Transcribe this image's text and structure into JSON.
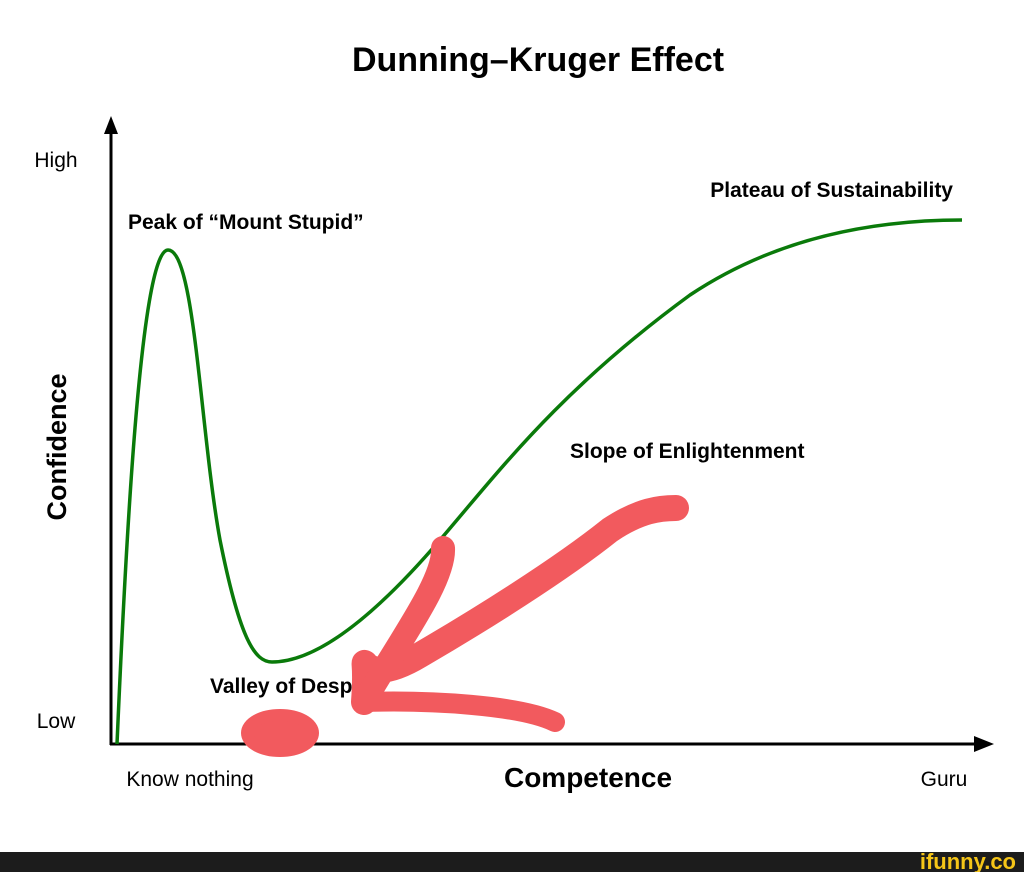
{
  "title": "Dunning–Kruger Effect",
  "y_axis": {
    "label": "Confidence",
    "high": "High",
    "low": "Low"
  },
  "x_axis": {
    "label": "Competence",
    "start": "Know nothing",
    "end": "Guru"
  },
  "annotations": {
    "peak": "Peak of “Mount Stupid”",
    "valley": "Valley of Despair",
    "slope": "Slope of Enlightenment",
    "plateau": "Plateau of Sustainability"
  },
  "watermark": "ifunny.co"
}
